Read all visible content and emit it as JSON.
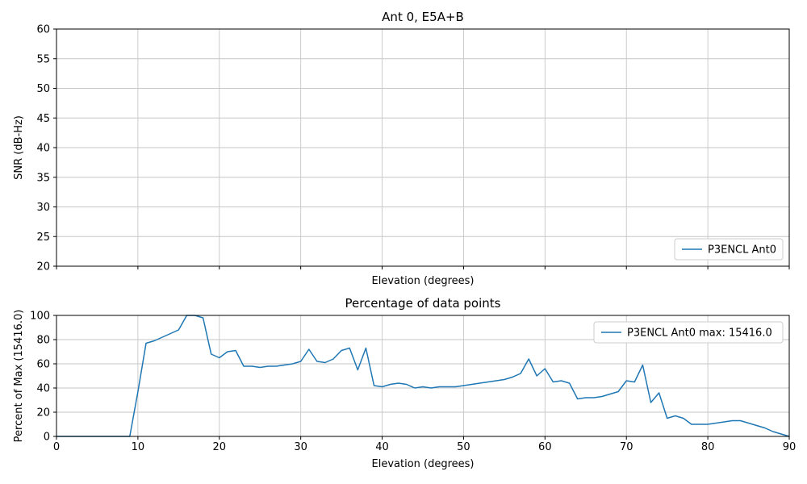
{
  "figure": {
    "background": "#ffffff"
  },
  "colors": {
    "line": "#1f77b4",
    "grid": "#c6c6c6",
    "spine": "#000000",
    "text": "#000000",
    "legend_border": "#cccccc",
    "legend_fill": "#ffffff"
  },
  "chart_data": [
    {
      "type": "line",
      "title": "Ant 0, E5A+B",
      "xlabel": "Elevation (degrees)",
      "ylabel": "SNR (dB-Hz)",
      "xlim": [
        0,
        90
      ],
      "ylim": [
        20,
        60
      ],
      "xticks": [
        0,
        10,
        20,
        30,
        40,
        50,
        60,
        70,
        80,
        90
      ],
      "yticks": [
        20,
        25,
        30,
        35,
        40,
        45,
        50,
        55,
        60
      ],
      "x_tick_labels_visible": false,
      "grid": true,
      "legend": {
        "position": "lower right",
        "entries": [
          {
            "label": "P3ENCL Ant0",
            "color": "#1f77b4"
          }
        ]
      },
      "series": []
    },
    {
      "type": "line",
      "title": "Percentage of data points",
      "xlabel": "Elevation (degrees)",
      "ylabel": "Percent of Max (15416.0)",
      "xlim": [
        0,
        90
      ],
      "ylim": [
        0,
        100
      ],
      "xticks": [
        0,
        10,
        20,
        30,
        40,
        50,
        60,
        70,
        80,
        90
      ],
      "yticks": [
        0,
        20,
        40,
        60,
        80,
        100
      ],
      "x_tick_labels_visible": true,
      "grid": true,
      "legend": {
        "position": "upper right",
        "entries": [
          {
            "label": "P3ENCL Ant0 max: 15416.0",
            "color": "#1f77b4"
          }
        ]
      },
      "series": [
        {
          "name": "P3ENCL Ant0",
          "color": "#1f77b4",
          "max_value": "15416.0",
          "x": [
            0,
            1,
            2,
            3,
            4,
            5,
            6,
            7,
            8,
            9,
            10,
            11,
            12,
            13,
            14,
            15,
            16,
            17,
            18,
            19,
            20,
            21,
            22,
            23,
            24,
            25,
            26,
            27,
            28,
            29,
            30,
            31,
            32,
            33,
            34,
            35,
            36,
            37,
            38,
            39,
            40,
            41,
            42,
            43,
            44,
            45,
            46,
            47,
            48,
            49,
            50,
            51,
            52,
            53,
            54,
            55,
            56,
            57,
            58,
            59,
            60,
            61,
            62,
            63,
            64,
            65,
            66,
            67,
            68,
            69,
            70,
            71,
            72,
            73,
            74,
            75,
            76,
            77,
            78,
            79,
            80,
            81,
            82,
            83,
            84,
            85,
            86,
            87,
            88,
            89,
            90
          ],
          "y": [
            0,
            0,
            0,
            0,
            0,
            0,
            0,
            0,
            0,
            0,
            37,
            77,
            79,
            82,
            85,
            88,
            100,
            100,
            98,
            68,
            65,
            70,
            71,
            58,
            58,
            57,
            58,
            58,
            59,
            60,
            62,
            72,
            62,
            61,
            64,
            71,
            73,
            55,
            73,
            42,
            41,
            43,
            44,
            43,
            40,
            41,
            40,
            41,
            41,
            41,
            42,
            43,
            44,
            45,
            46,
            47,
            49,
            52,
            64,
            50,
            56,
            45,
            46,
            44,
            31,
            32,
            32,
            33,
            35,
            37,
            46,
            45,
            59,
            28,
            36,
            15,
            17,
            15,
            10,
            10,
            10,
            11,
            12,
            13,
            13,
            11,
            9,
            7,
            4,
            2,
            0
          ]
        }
      ]
    }
  ]
}
